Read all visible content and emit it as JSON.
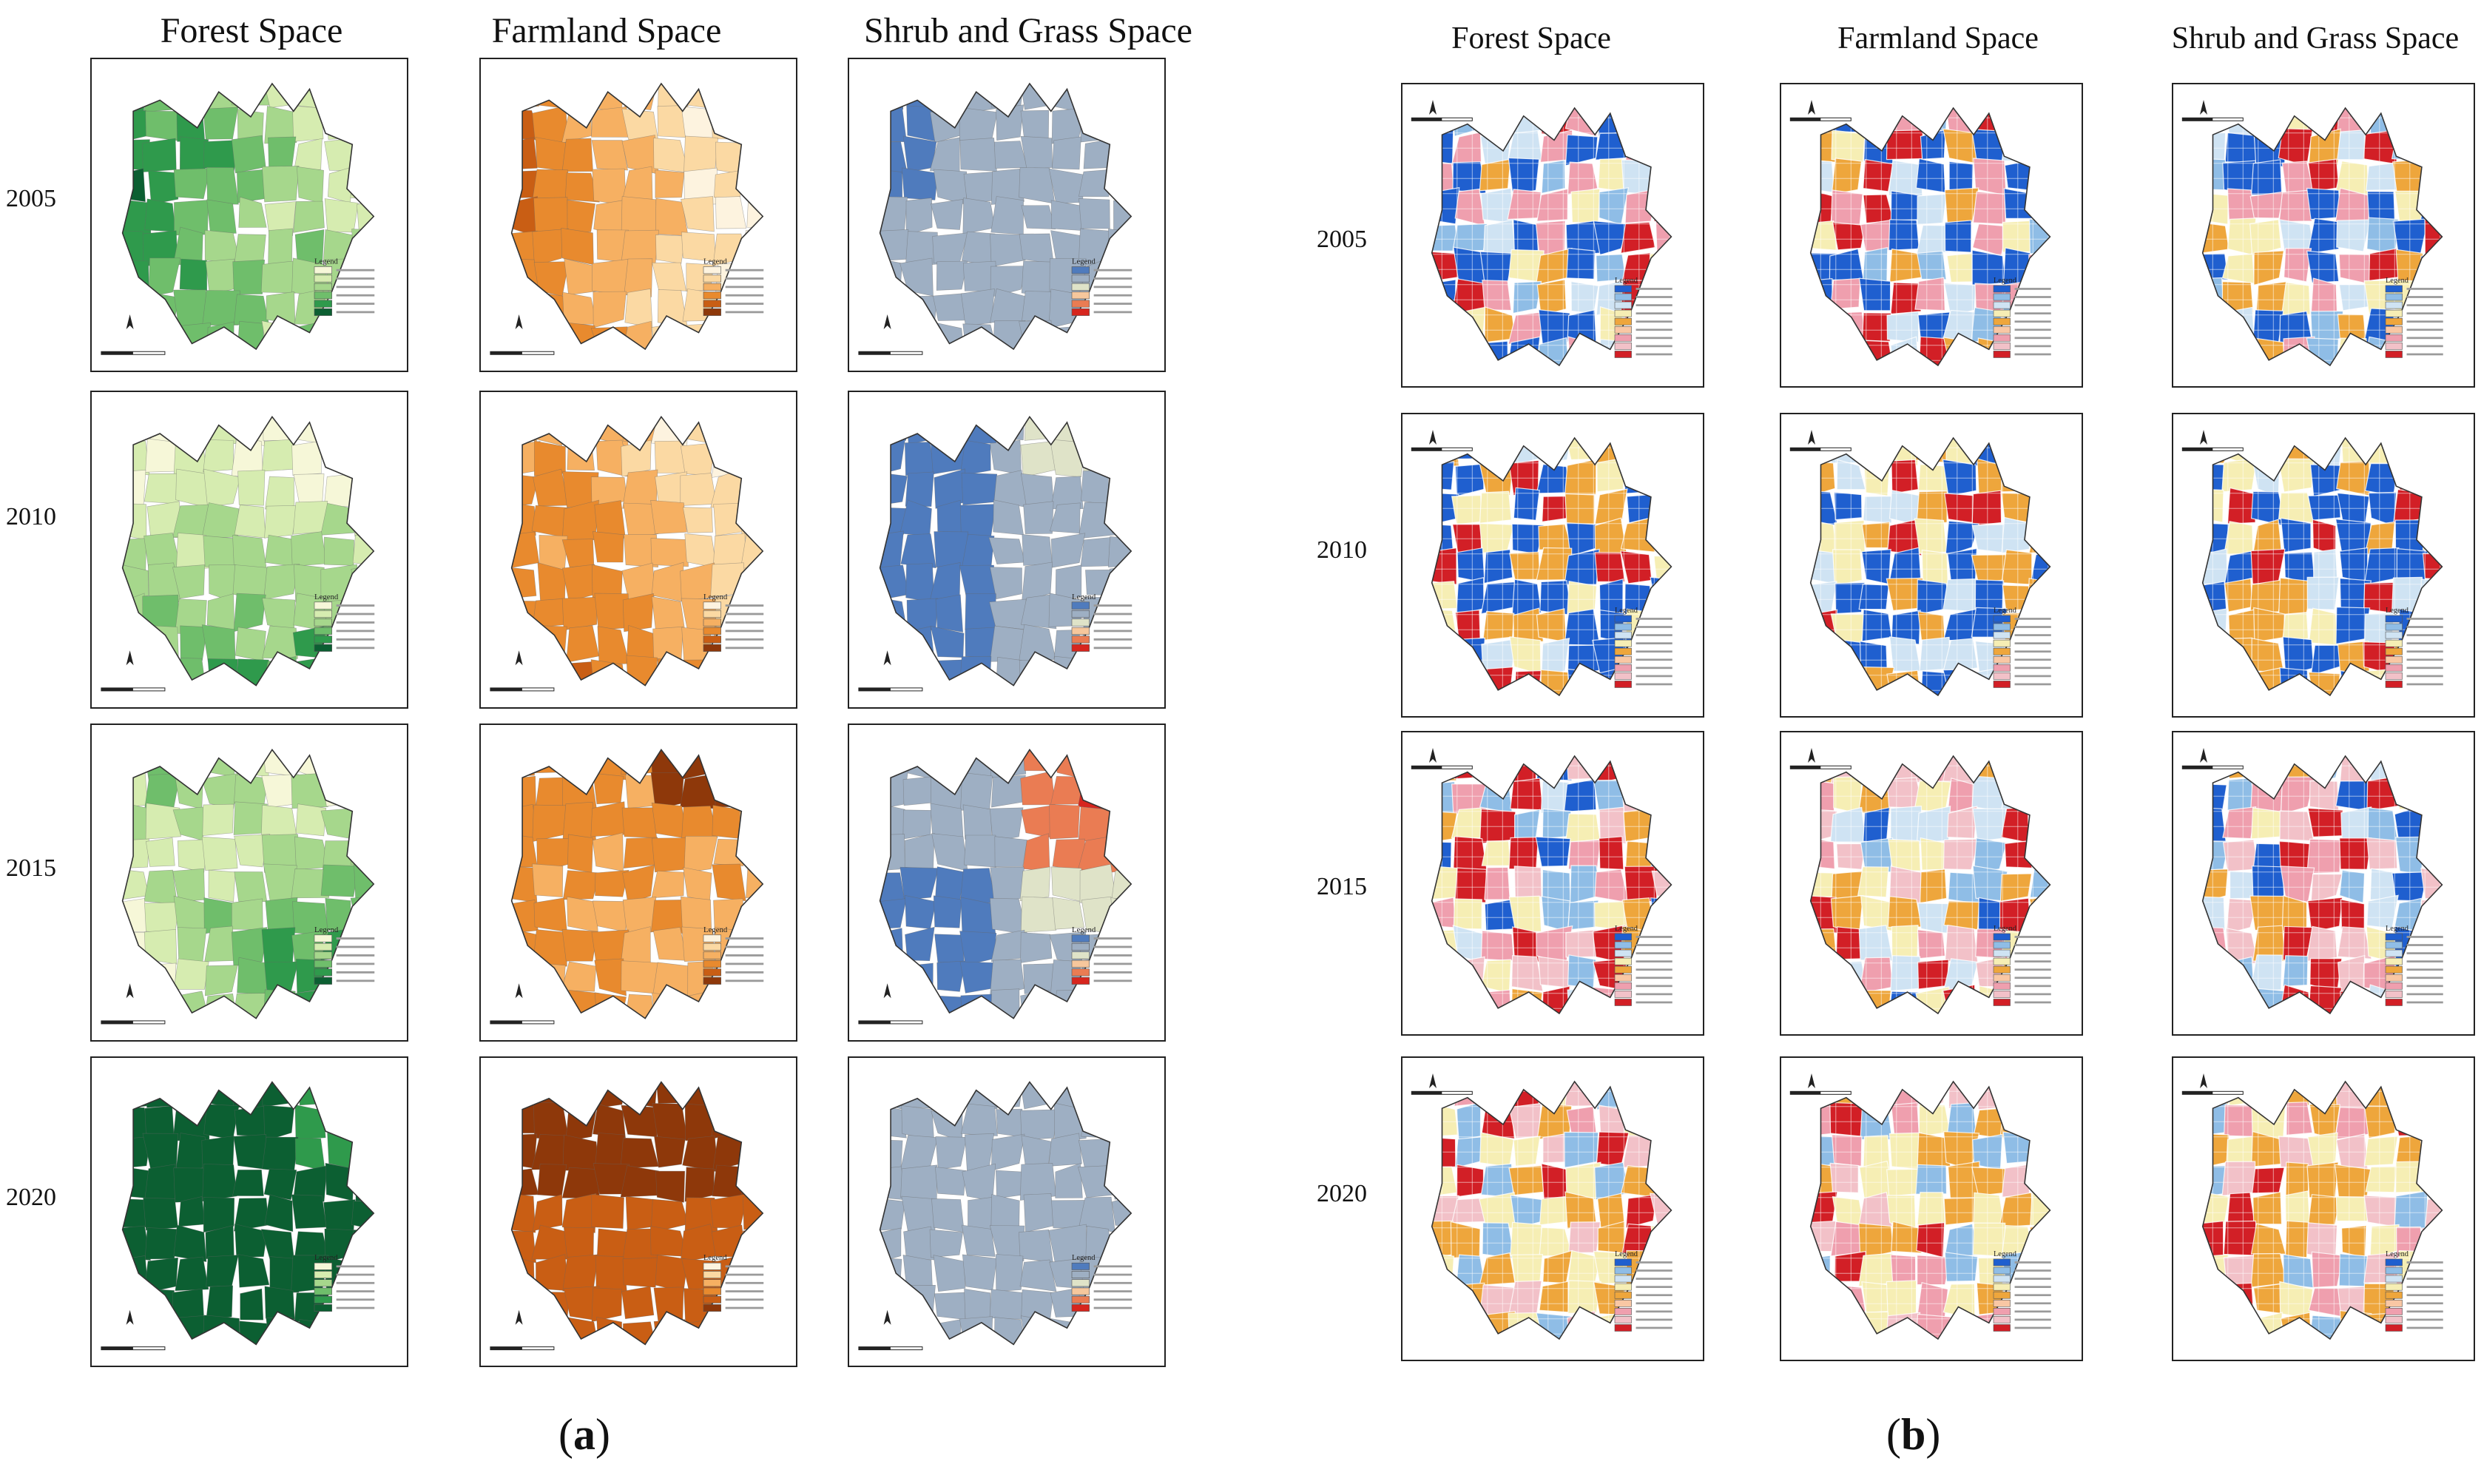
{
  "panel_a": {
    "columns": [
      "Forest Space",
      "Farmland Space",
      "Shrub and Grass Space"
    ],
    "years": [
      "2005",
      "2010",
      "2015",
      "2020"
    ],
    "caption_letter": "a",
    "legend_title": "Legend",
    "palettes": {
      "forest": [
        "#f6f7d8",
        "#d6ecb0",
        "#a6d78c",
        "#6fbe6b",
        "#2f9a4c",
        "#0c5f32"
      ],
      "farmland": [
        "#fdf3df",
        "#fbd9a3",
        "#f6b062",
        "#e88a2e",
        "#c95e14",
        "#8e380a"
      ],
      "shrub": [
        "#4f7bbd",
        "#9eafc3",
        "#dfe3c8",
        "#f6c79c",
        "#ea7c53",
        "#d7261e"
      ]
    }
  },
  "panel_b": {
    "columns": [
      "Forest Space",
      "Farmland Space",
      "Shrub and Grass Space"
    ],
    "years": [
      "2005",
      "2010",
      "2015",
      "2020"
    ],
    "caption_letter": "b",
    "legend_title": "Legend",
    "palette": [
      "#1f5fcf",
      "#8fbde6",
      "#cfe3f3",
      "#f6eeb4",
      "#eea63c",
      "#f9c7a4",
      "#ef9fae",
      "#f2c1c8",
      "#d21f26"
    ]
  }
}
